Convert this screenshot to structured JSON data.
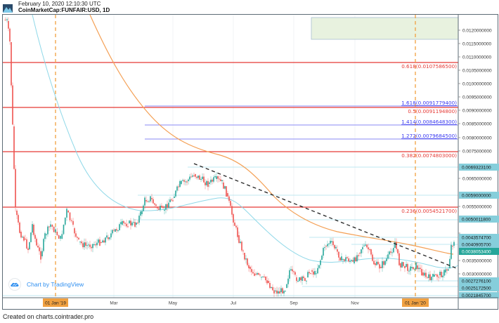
{
  "header": {
    "timestamp": "February 10, 2020 12:10:30 UTC",
    "symbol": "CoinMarketCap:FUNFAIR:USD, 1D"
  },
  "watermark": {
    "text": "Chart by TradingView",
    "icon": "tradingview-cloud-icon"
  },
  "footer": {
    "text": "Created on charts.cointrader.pro"
  },
  "colors": {
    "up_candle": "#26a69a",
    "down_candle": "#ef5350",
    "fib_retracement": "#e53935",
    "fib_extension": "#5b5bf0",
    "ma_fast": "#8fd8e8",
    "ma_slow": "#f4a055",
    "trendline": "#222222",
    "year_marker": "#f0a040",
    "price_tag_bg": "#86cedb",
    "last_price_bg": "#26a69a",
    "target_box": "#e8f2df"
  },
  "chart_data": {
    "type": "candlestick",
    "title": "CoinMarketCap:FUNFAIR:USD, 1D",
    "timestamp": "February 10, 2020 12:10:30 UTC",
    "xlabel": "",
    "ylabel": "Price (USD)",
    "x_ticks": [
      "01 Jan '19",
      "Mar",
      "May",
      "Jul",
      "Sep",
      "Nov",
      "01 Jan '20"
    ],
    "y_ticks": [
      "0.0120000000",
      "0.0115000000",
      "0.0110000000",
      "0.0105000000",
      "0.0100000000",
      "0.0095000000",
      "0.0090000000",
      "0.0085000000",
      "0.0080000000",
      "0.0075000000",
      "0.0065000000",
      "0.0055000000",
      "0.0045000000",
      "0.0035000000",
      "0.0030000000"
    ],
    "ylim": [
      0.002,
      0.0126
    ],
    "grid": true,
    "fib_levels": [
      {
        "ratio": "0.618",
        "price": "0.0107586500",
        "kind": "retracement"
      },
      {
        "ratio": "1.618",
        "price": "0.0091779400",
        "kind": "extension"
      },
      {
        "ratio": "0.5",
        "price": "0.0091194800",
        "kind": "retracement"
      },
      {
        "ratio": "1.414",
        "price": "0.0084648300",
        "kind": "extension"
      },
      {
        "ratio": "1.272",
        "price": "0.0079684500",
        "kind": "extension"
      },
      {
        "ratio": "0.382",
        "price": "0.0074803000",
        "kind": "retracement"
      },
      {
        "ratio": "0.236",
        "price": "0.0054521700",
        "kind": "retracement"
      }
    ],
    "horizontal_levels": [
      "0.0069323100",
      "0.0059000000",
      "0.0050011800",
      "0.0043574700",
      "0.0040905700",
      "0.0027276100",
      "0.0025172500",
      "0.0021845700"
    ],
    "last_price": "0.0038053400",
    "target_zone": {
      "from": 0.0116,
      "to": 0.0124
    },
    "moving_averages": [
      "fast (cyan)",
      "slow (orange)"
    ],
    "trendline": {
      "from": {
        "date": "May 2019",
        "price": 0.007
      },
      "to": {
        "date": "Feb 2020",
        "price": 0.0032
      }
    },
    "approx_closes": [
      {
        "date": "Nov 2018",
        "price": 0.012
      },
      {
        "date": "Dec 2018",
        "price": 0.004
      },
      {
        "date": "01 Jan 2019",
        "price": 0.0042
      },
      {
        "date": "Feb 2019",
        "price": 0.004
      },
      {
        "date": "Mar 2019",
        "price": 0.0043
      },
      {
        "date": "Apr 2019",
        "price": 0.0055
      },
      {
        "date": "May 2019",
        "price": 0.0065
      },
      {
        "date": "Jun 2019",
        "price": 0.0063
      },
      {
        "date": "Jul 2019",
        "price": 0.004
      },
      {
        "date": "Aug 2019",
        "price": 0.0023
      },
      {
        "date": "Sep 2019",
        "price": 0.0037
      },
      {
        "date": "Oct 2019",
        "price": 0.0034
      },
      {
        "date": "Nov 2019",
        "price": 0.0036
      },
      {
        "date": "Dec 2019",
        "price": 0.0033
      },
      {
        "date": "01 Jan 2020",
        "price": 0.0029
      },
      {
        "date": "Feb 2020",
        "price": 0.0038
      }
    ]
  }
}
